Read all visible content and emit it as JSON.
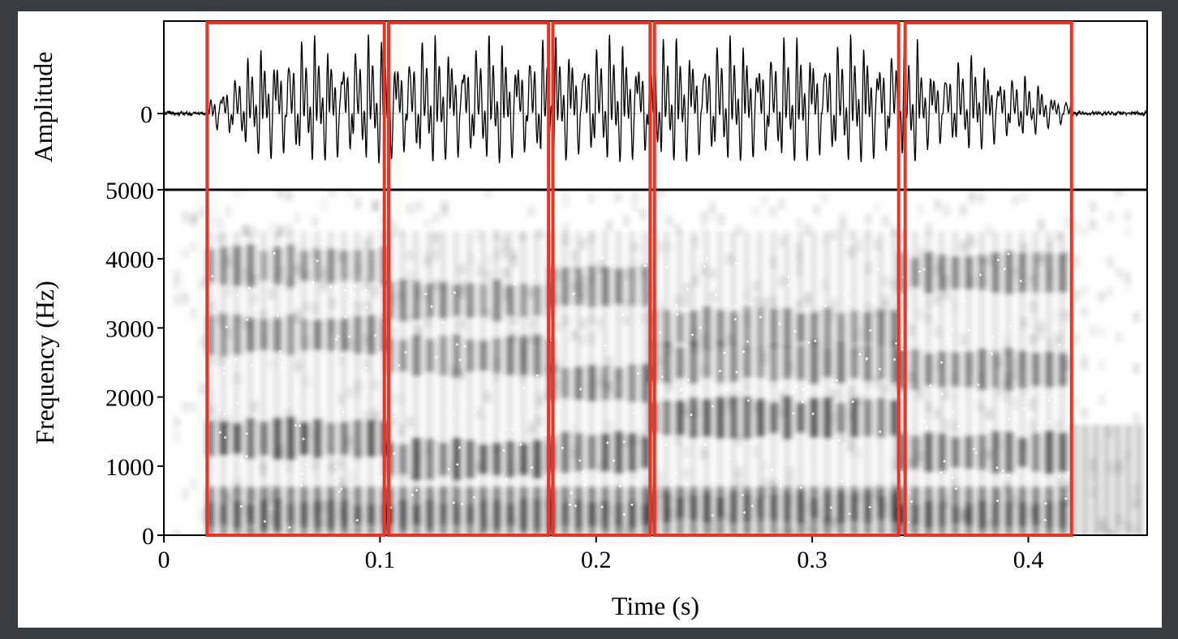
{
  "chart_data": {
    "type": "heatmap",
    "description_panels": [
      "waveform",
      "spectrogram"
    ],
    "xlabel": "Time (s)",
    "x_range": [
      0,
      0.455
    ],
    "x_ticks": [
      0,
      0.1,
      0.2,
      0.3,
      0.4
    ],
    "x_tick_labels": [
      "0",
      "0.1",
      "0.2",
      "0.3",
      "0.4"
    ],
    "waveform": {
      "ylabel": "Amplitude",
      "y_ticks": [
        0
      ],
      "y_tick_labels": [
        "0"
      ]
    },
    "spectrogram": {
      "ylabel": "Frequency (Hz)",
      "y_range": [
        0,
        5000
      ],
      "y_ticks": [
        0,
        1000,
        2000,
        3000,
        4000,
        5000
      ],
      "y_tick_labels": [
        "0",
        "1000",
        "2000",
        "3000",
        "4000",
        "5000"
      ],
      "colormap": "grayscale",
      "formant_bands": [
        {
          "t0": 0.02,
          "t1": 0.103,
          "freqs": [
            300,
            1400,
            2900,
            3900
          ]
        },
        {
          "t0": 0.103,
          "t1": 0.178,
          "freqs": [
            300,
            1100,
            2600,
            3400
          ]
        },
        {
          "t0": 0.178,
          "t1": 0.225,
          "freqs": [
            300,
            1200,
            2200,
            3600
          ]
        },
        {
          "t0": 0.225,
          "t1": 0.34,
          "freqs": [
            400,
            1700,
            2500,
            3000
          ]
        },
        {
          "t0": 0.34,
          "t1": 0.42,
          "freqs": [
            300,
            1200,
            2400,
            3800
          ]
        }
      ]
    },
    "segments": [
      {
        "t0": 0.02,
        "t1": 0.102
      },
      {
        "t0": 0.104,
        "t1": 0.178
      },
      {
        "t0": 0.18,
        "t1": 0.225
      },
      {
        "t0": 0.227,
        "t1": 0.34
      },
      {
        "t0": 0.343,
        "t1": 0.42
      }
    ],
    "grid": false
  },
  "colors": {
    "segment_box": "#ee3322",
    "frame_background": "#383d3f",
    "plot_background": "#ffffff",
    "ink": "#000000"
  }
}
